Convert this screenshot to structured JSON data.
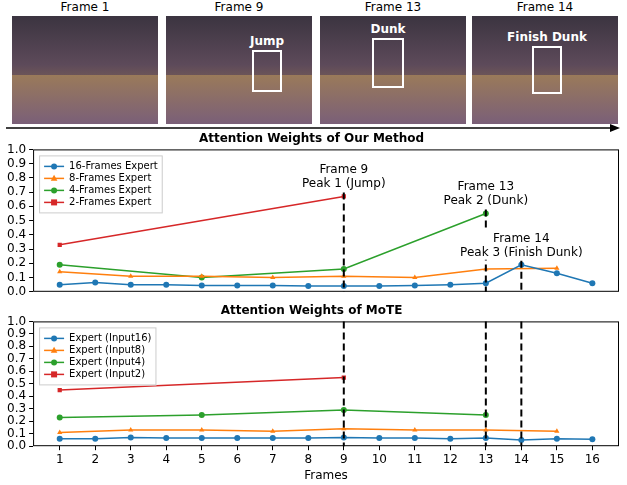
{
  "frames": [
    {
      "title": "Frame 1"
    },
    {
      "title": "Frame 9",
      "box_label": "Jump"
    },
    {
      "title": "Frame 13",
      "box_label": "Dunk"
    },
    {
      "title": "Frame 14",
      "box_label": "Finish Dunk"
    }
  ],
  "chart_data": [
    {
      "type": "line",
      "title": "Attention Weights of Our Method",
      "xlim": [
        0.25,
        16.75
      ],
      "xticks": [
        1,
        2,
        3,
        4,
        5,
        6,
        7,
        8,
        9,
        10,
        11,
        12,
        13,
        14,
        15,
        16
      ],
      "ylim": [
        0,
        1
      ],
      "yticks": [
        {
          "value": 0,
          "label": "0.0"
        },
        0.1,
        0.2,
        0.3,
        0.4,
        0.5,
        0.6,
        0.7,
        0.8,
        0.9,
        {
          "value": 1,
          "label": "1.0"
        }
      ],
      "tick_labels": "y",
      "grid": false,
      "legend": "upper left",
      "series": [
        {
          "name": "16-Frames Expert",
          "color": "#1f77b4",
          "marker": "circle",
          "x": [
            1,
            2,
            3,
            4,
            5,
            6,
            7,
            8,
            9,
            10,
            11,
            12,
            13,
            14,
            15,
            16
          ],
          "values": [
            0.05,
            0.065,
            0.05,
            0.05,
            0.045,
            0.045,
            0.045,
            0.04,
            0.04,
            0.04,
            0.045,
            0.05,
            0.06,
            0.19,
            0.13,
            0.06
          ]
        },
        {
          "name": "8-Frames Expert",
          "color": "#ff7f0e",
          "marker": "triangle",
          "x": [
            1,
            3,
            5,
            7,
            9,
            11,
            13,
            15
          ],
          "values": [
            0.14,
            0.11,
            0.11,
            0.1,
            0.11,
            0.1,
            0.16,
            0.165
          ]
        },
        {
          "name": "4-Frames Expert",
          "color": "#2ca02c",
          "marker": "circle",
          "x": [
            1,
            5,
            9,
            13
          ],
          "values": [
            0.19,
            0.1,
            0.16,
            0.55
          ]
        },
        {
          "name": "2-Frames Expert",
          "color": "#d62728",
          "marker": "square",
          "x": [
            1,
            9
          ],
          "values": [
            0.33,
            0.67
          ]
        }
      ],
      "annotations": [
        {
          "x": 9,
          "text": [
            "Frame 9",
            "Peak 1 (Jump)"
          ]
        },
        {
          "x": 13,
          "text": [
            "Frame 13",
            "Peak 2 (Dunk)"
          ]
        },
        {
          "x": 14,
          "text": [
            "Frame 14",
            "Peak 3 (Finish Dunk)"
          ]
        }
      ]
    },
    {
      "type": "line",
      "title": "Attention Weights of MoTE",
      "x_label": "Frames",
      "xlim": [
        0.25,
        16.75
      ],
      "xticks": [
        1,
        2,
        3,
        4,
        5,
        6,
        7,
        8,
        9,
        10,
        11,
        12,
        13,
        14,
        15,
        16
      ],
      "ylim": [
        0,
        1
      ],
      "yticks": [
        {
          "value": 0,
          "label": "0.0"
        },
        0.1,
        0.2,
        0.3,
        0.4,
        0.5,
        0.6,
        0.7,
        0.8,
        0.9,
        {
          "value": 1,
          "label": "1.0"
        }
      ],
      "grid": false,
      "legend": "upper left",
      "series": [
        {
          "name": "Expert (Input16)",
          "color": "#1f77b4",
          "marker": "circle",
          "x": [
            1,
            2,
            3,
            4,
            5,
            6,
            7,
            8,
            9,
            10,
            11,
            12,
            13,
            14,
            15,
            16
          ],
          "values": [
            0.06,
            0.06,
            0.07,
            0.065,
            0.065,
            0.065,
            0.065,
            0.065,
            0.07,
            0.065,
            0.065,
            0.06,
            0.065,
            0.05,
            0.06,
            0.055
          ]
        },
        {
          "name": "Expert (Input8)",
          "color": "#ff7f0e",
          "marker": "triangle",
          "x": [
            1,
            3,
            5,
            7,
            9,
            11,
            13,
            15
          ],
          "values": [
            0.11,
            0.13,
            0.13,
            0.12,
            0.14,
            0.13,
            0.13,
            0.12
          ]
        },
        {
          "name": "Expert (Input4)",
          "color": "#2ca02c",
          "marker": "circle",
          "x": [
            1,
            5,
            9,
            13
          ],
          "values": [
            0.23,
            0.25,
            0.29,
            0.25
          ]
        },
        {
          "name": "Expert (Input2)",
          "color": "#d62728",
          "marker": "square",
          "x": [
            1,
            9
          ],
          "values": [
            0.45,
            0.55
          ]
        }
      ],
      "vlines": [
        9,
        13,
        14
      ]
    }
  ]
}
